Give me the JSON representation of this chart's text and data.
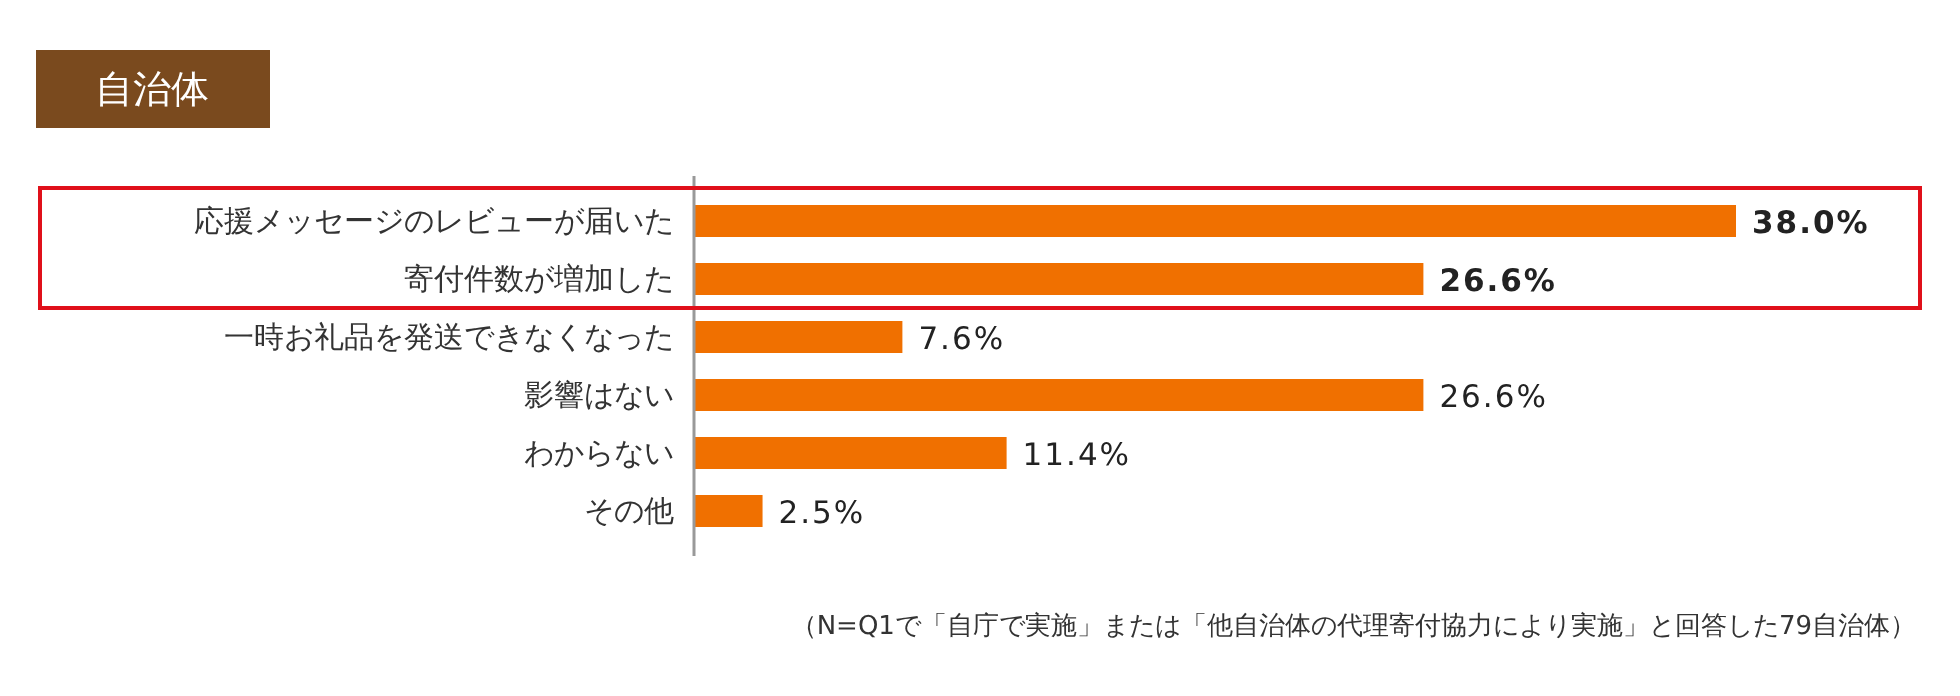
{
  "chart_data": {
    "type": "bar",
    "orientation": "horizontal",
    "title": "自治体",
    "categories": [
      "応援メッセージのレビューが届いた",
      "寄付件数が増加した",
      "一時お礼品を発送できなくなった",
      "影響はない",
      "わからない",
      "その他"
    ],
    "values": [
      38.0,
      26.6,
      7.6,
      26.6,
      11.4,
      2.5
    ],
    "value_labels": [
      "38.0%",
      "26.6%",
      "7.6%",
      "26.6%",
      "11.4%",
      "2.5%"
    ],
    "color": "#f07000",
    "annotations": [
      "（N=Q1で「自庁で実施」または「他自治体の代理寄付協力により実施」と回答した79自治体）"
    ]
  }
}
